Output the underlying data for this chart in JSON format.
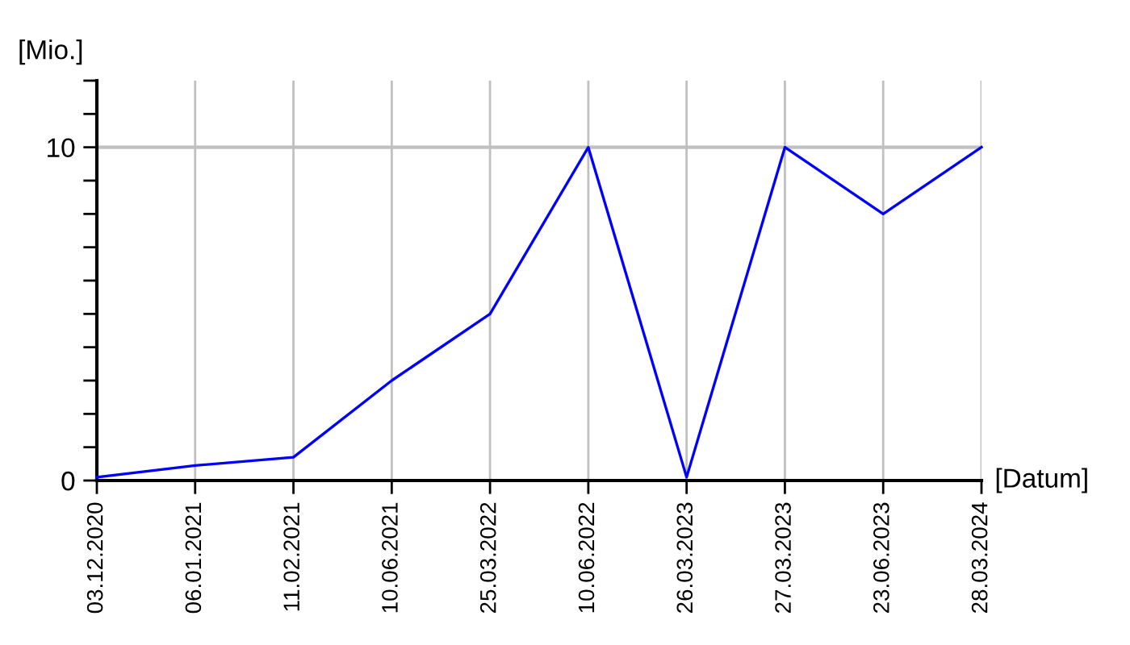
{
  "chart_data": {
    "type": "line",
    "xlabel": "[Datum]",
    "ylabel": "[Mio.]",
    "categories": [
      "03.12.2020",
      "06.01.2021",
      "11.02.2021",
      "10.06.2021",
      "25.03.2022",
      "10.06.2022",
      "26.03.2023",
      "27.03.2023",
      "23.06.2023",
      "28.03.2024"
    ],
    "series": [
      {
        "color": "#0000ff",
        "values": [
          0.1,
          0.45,
          0.7,
          3,
          5,
          10,
          0.1,
          10,
          8,
          10
        ]
      }
    ],
    "ylim": [
      0,
      12
    ],
    "yticks": [
      0,
      {
        "value": 1,
        "label": null
      },
      {
        "value": 2,
        "label": null
      },
      {
        "value": 3,
        "label": null
      },
      {
        "value": 4,
        "label": null
      },
      {
        "value": 5,
        "label": null
      },
      {
        "value": 6,
        "label": null
      },
      {
        "value": 7,
        "label": null
      },
      {
        "value": 8,
        "label": null
      },
      {
        "value": 9,
        "label": null
      },
      10,
      {
        "value": 11,
        "label": null
      },
      {
        "value": 12,
        "label": null
      }
    ],
    "ref_lines": [
      {
        "axis": "y",
        "value": 10,
        "color": "#c0c0c0"
      }
    ],
    "grid": "x",
    "marker": "none",
    "line_style": "solid"
  }
}
